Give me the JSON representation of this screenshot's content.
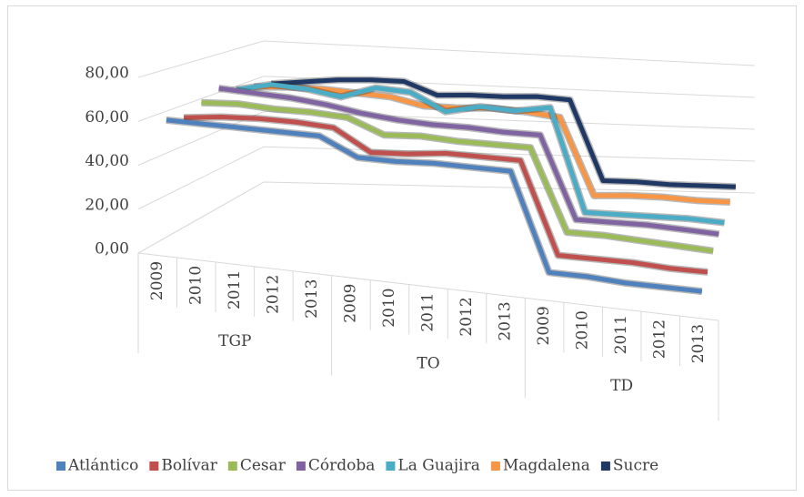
{
  "chart_data": {
    "type": "line3d",
    "categories": [
      "2009",
      "2010",
      "2011",
      "2012",
      "2013",
      "2009",
      "2010",
      "2011",
      "2012",
      "2013",
      "2009",
      "2010",
      "2011",
      "2012",
      "2013"
    ],
    "groups": [
      {
        "name": "TGP",
        "span": 5
      },
      {
        "name": "TO",
        "span": 5
      },
      {
        "name": "TD",
        "span": 5
      }
    ],
    "ylim": [
      0,
      80
    ],
    "yticks": [
      {
        "value": 0,
        "label": "0,00"
      },
      {
        "value": 20,
        "label": "20,00"
      },
      {
        "value": 40,
        "label": "40,00"
      },
      {
        "value": 60,
        "label": "60,00"
      },
      {
        "value": 80,
        "label": "80,00"
      }
    ],
    "grid": true,
    "legend": "bottom",
    "series": [
      {
        "name": "Atlántico",
        "color": "#4f81bd",
        "values": [
          60,
          60,
          60,
          60,
          60,
          52,
          52,
          53,
          53,
          53,
          9,
          9,
          8,
          8,
          8
        ]
      },
      {
        "name": "Bolívar",
        "color": "#c0504d",
        "values": [
          58,
          60,
          61,
          61,
          60,
          50,
          51,
          53,
          53,
          53,
          10,
          10,
          10,
          9,
          9
        ]
      },
      {
        "name": "Cesar",
        "color": "#9bbb59",
        "values": [
          62,
          63,
          62,
          62,
          61,
          54,
          55,
          54,
          54,
          54,
          14,
          14,
          13,
          12,
          11
        ]
      },
      {
        "name": "Córdoba",
        "color": "#8064a2",
        "values": [
          66,
          65,
          64,
          62,
          59,
          57,
          56,
          56,
          55,
          55,
          13,
          13,
          13,
          12,
          11
        ]
      },
      {
        "name": "La Guajira",
        "color": "#4bacc6",
        "values": [
          62,
          66,
          65,
          62,
          68,
          67,
          58,
          62,
          61,
          64,
          9,
          9,
          9,
          9,
          8
        ]
      },
      {
        "name": "Magdalena",
        "color": "#f79646",
        "values": [
          60,
          61,
          61,
          60,
          59,
          55,
          55,
          56,
          55,
          53,
          10,
          11,
          11,
          10,
          10
        ]
      },
      {
        "name": "Sucre",
        "color": "#1f3864",
        "values": [
          58,
          60,
          62,
          63,
          63,
          56,
          57,
          57,
          58,
          57,
          10,
          10,
          9,
          9,
          9
        ]
      }
    ]
  }
}
